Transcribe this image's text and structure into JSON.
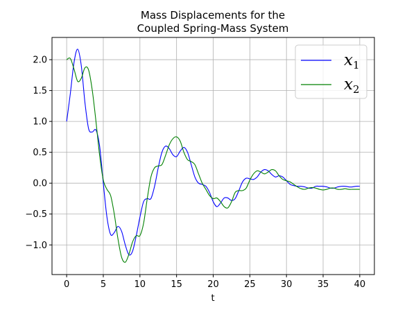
{
  "chart_data": {
    "type": "line",
    "title": [
      "Mass Displacements for the",
      "Coupled Spring-Mass System"
    ],
    "xlabel": "t",
    "ylabel": "",
    "xlim": [
      -2,
      42
    ],
    "ylim": [
      -1.48,
      2.36
    ],
    "x_ticks": [
      0,
      5,
      10,
      15,
      20,
      25,
      30,
      35,
      40
    ],
    "y_ticks": [
      -1.0,
      -0.5,
      0.0,
      0.5,
      1.0,
      1.5,
      2.0
    ],
    "y_tick_labels": [
      "−1.0",
      "−0.5",
      "0.0",
      "0.5",
      "1.0",
      "1.5",
      "2.0"
    ],
    "grid": true,
    "legend_position": "top-right",
    "series": [
      {
        "name": "x",
        "name_sub": "1",
        "color": "#0000ff",
        "x": [
          0,
          0.5,
          1.0,
          1.5,
          2.0,
          2.5,
          3.0,
          3.5,
          4.0,
          4.5,
          5.0,
          5.5,
          6.0,
          6.5,
          7.0,
          7.5,
          8.0,
          8.5,
          9.0,
          9.5,
          10.0,
          10.5,
          11.0,
          11.5,
          12.0,
          12.5,
          13.0,
          13.5,
          14.0,
          14.5,
          15.0,
          15.5,
          16.0,
          16.5,
          17.0,
          17.5,
          18.0,
          18.5,
          19.0,
          19.5,
          20.0,
          20.5,
          21.0,
          21.5,
          22.0,
          22.5,
          23.0,
          23.5,
          24.0,
          24.5,
          25.0,
          25.5,
          26.0,
          26.5,
          27.0,
          27.5,
          28.0,
          28.5,
          29.0,
          29.5,
          30.0,
          30.5,
          31.0,
          31.5,
          32.0,
          32.5,
          33.0,
          33.5,
          34.0,
          34.5,
          35.0,
          35.5,
          36.0,
          36.5,
          37.0,
          37.5,
          38.0,
          38.5,
          39.0,
          39.5,
          40.0
        ],
        "values": [
          1.0,
          1.45,
          1.95,
          2.17,
          1.9,
          1.3,
          0.88,
          0.83,
          0.86,
          0.6,
          0.0,
          -0.55,
          -0.83,
          -0.8,
          -0.7,
          -0.78,
          -1.0,
          -1.16,
          -1.1,
          -0.85,
          -0.55,
          -0.3,
          -0.25,
          -0.25,
          -0.05,
          0.25,
          0.5,
          0.6,
          0.56,
          0.46,
          0.43,
          0.52,
          0.58,
          0.5,
          0.3,
          0.1,
          0.0,
          -0.02,
          -0.05,
          -0.15,
          -0.3,
          -0.38,
          -0.32,
          -0.24,
          -0.24,
          -0.28,
          -0.25,
          -0.12,
          0.02,
          0.08,
          0.07,
          0.06,
          0.1,
          0.18,
          0.22,
          0.2,
          0.14,
          0.1,
          0.12,
          0.1,
          0.04,
          -0.02,
          -0.04,
          -0.05,
          -0.05,
          -0.06,
          -0.08,
          -0.08,
          -0.05,
          -0.05,
          -0.05,
          -0.06,
          -0.08,
          -0.08,
          -0.06,
          -0.05,
          -0.05,
          -0.06,
          -0.06,
          -0.05,
          -0.05
        ]
      },
      {
        "name": "x",
        "name_sub": "2",
        "color": "#008000",
        "x": [
          0,
          0.5,
          1.0,
          1.5,
          2.0,
          2.5,
          3.0,
          3.5,
          4.0,
          4.5,
          5.0,
          5.5,
          6.0,
          6.5,
          7.0,
          7.5,
          8.0,
          8.5,
          9.0,
          9.5,
          10.0,
          10.5,
          11.0,
          11.5,
          12.0,
          12.5,
          13.0,
          13.5,
          14.0,
          14.5,
          15.0,
          15.5,
          16.0,
          16.5,
          17.0,
          17.5,
          18.0,
          18.5,
          19.0,
          19.5,
          20.0,
          20.5,
          21.0,
          21.5,
          22.0,
          22.5,
          23.0,
          23.5,
          24.0,
          24.5,
          25.0,
          25.5,
          26.0,
          26.5,
          27.0,
          27.5,
          28.0,
          28.5,
          29.0,
          29.5,
          30.0,
          30.5,
          31.0,
          31.5,
          32.0,
          32.5,
          33.0,
          33.5,
          34.0,
          34.5,
          35.0,
          35.5,
          36.0,
          36.5,
          37.0,
          37.5,
          38.0,
          38.5,
          39.0,
          39.5,
          40.0
        ],
        "values": [
          2.0,
          2.02,
          1.85,
          1.65,
          1.7,
          1.87,
          1.83,
          1.5,
          1.0,
          0.45,
          0.05,
          -0.1,
          -0.2,
          -0.5,
          -0.9,
          -1.2,
          -1.28,
          -1.15,
          -0.95,
          -0.85,
          -0.85,
          -0.65,
          -0.25,
          0.1,
          0.25,
          0.28,
          0.3,
          0.45,
          0.62,
          0.72,
          0.75,
          0.68,
          0.5,
          0.38,
          0.35,
          0.3,
          0.15,
          0.0,
          -0.1,
          -0.2,
          -0.25,
          -0.24,
          -0.3,
          -0.38,
          -0.4,
          -0.3,
          -0.15,
          -0.12,
          -0.12,
          -0.08,
          0.05,
          0.15,
          0.2,
          0.18,
          0.15,
          0.18,
          0.22,
          0.2,
          0.12,
          0.06,
          0.04,
          0.02,
          -0.02,
          -0.06,
          -0.09,
          -0.1,
          -0.08,
          -0.07,
          -0.08,
          -0.1,
          -0.11,
          -0.1,
          -0.08,
          -0.08,
          -0.1,
          -0.1,
          -0.09,
          -0.1,
          -0.1,
          -0.1,
          -0.1
        ]
      }
    ]
  }
}
